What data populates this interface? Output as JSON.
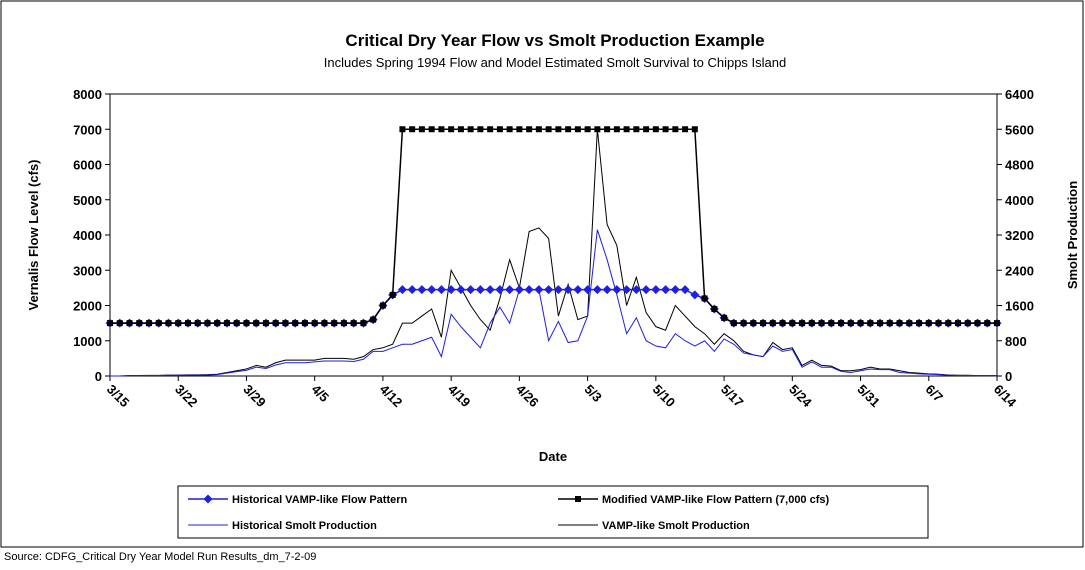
{
  "chart_data": {
    "type": "line",
    "title": "Critical Dry Year Flow vs Smolt Production Example",
    "subtitle": "Includes Spring 1994 Flow and Model Estimated Smolt Survival to Chipps Island",
    "x_label": "Date",
    "y_label": "Vernalis Flow Level (cfs)",
    "y2_label": "Smolt Production",
    "source": "Source: CDFG_Critical Dry Year Model Run Results_dm_7-2-09",
    "legend": "bottom",
    "categories": [
      "3/15",
      null,
      null,
      null,
      null,
      null,
      null,
      "3/22",
      null,
      null,
      null,
      null,
      null,
      null,
      "3/29",
      null,
      null,
      null,
      null,
      null,
      null,
      "4/5",
      null,
      null,
      null,
      null,
      null,
      null,
      "4/12",
      null,
      null,
      null,
      null,
      null,
      null,
      "4/19",
      null,
      null,
      null,
      null,
      null,
      null,
      "4/26",
      null,
      null,
      null,
      null,
      null,
      null,
      "5/3",
      null,
      null,
      null,
      null,
      null,
      null,
      "5/10",
      null,
      null,
      null,
      null,
      null,
      null,
      "5/17",
      null,
      null,
      null,
      null,
      null,
      null,
      "5/24",
      null,
      null,
      null,
      null,
      null,
      null,
      "5/31",
      null,
      null,
      null,
      null,
      null,
      null,
      "6/7",
      null,
      null,
      null,
      null,
      null,
      null,
      "6/14"
    ],
    "ylim": [
      0,
      8000
    ],
    "yticks": [
      0,
      1000,
      2000,
      3000,
      4000,
      5000,
      6000,
      7000,
      8000
    ],
    "y2lim": [
      0,
      6400
    ],
    "y2ticks": [
      0,
      800,
      1600,
      2400,
      3200,
      4000,
      4800,
      5600,
      6400
    ],
    "series": [
      {
        "name": "Historical VAMP-like Flow Pattern",
        "color": "#1f1fe0",
        "marker": "diamond",
        "axis": "y",
        "values": [
          1500,
          1500,
          1500,
          1500,
          1500,
          1500,
          1500,
          1500,
          1500,
          1500,
          1500,
          1500,
          1500,
          1500,
          1500,
          1500,
          1500,
          1500,
          1500,
          1500,
          1500,
          1500,
          1500,
          1500,
          1500,
          1500,
          1500,
          1600,
          2000,
          2300,
          2450,
          2450,
          2450,
          2450,
          2450,
          2450,
          2450,
          2450,
          2450,
          2450,
          2450,
          2450,
          2450,
          2450,
          2450,
          2450,
          2450,
          2450,
          2450,
          2450,
          2450,
          2450,
          2450,
          2450,
          2450,
          2450,
          2450,
          2450,
          2450,
          2450,
          2300,
          2200,
          1900,
          1650,
          1500,
          1500,
          1500,
          1500,
          1500,
          1500,
          1500,
          1500,
          1500,
          1500,
          1500,
          1500,
          1500,
          1500,
          1500,
          1500,
          1500,
          1500,
          1500,
          1500,
          1500,
          1500,
          1500,
          1500,
          1500,
          1500,
          1500,
          1500
        ]
      },
      {
        "name": "Modified VAMP-like Flow Pattern (7,000 cfs)",
        "color": "#000000",
        "marker": "square",
        "axis": "y",
        "values": [
          1500,
          1500,
          1500,
          1500,
          1500,
          1500,
          1500,
          1500,
          1500,
          1500,
          1500,
          1500,
          1500,
          1500,
          1500,
          1500,
          1500,
          1500,
          1500,
          1500,
          1500,
          1500,
          1500,
          1500,
          1500,
          1500,
          1500,
          1600,
          2000,
          2300,
          7000,
          7000,
          7000,
          7000,
          7000,
          7000,
          7000,
          7000,
          7000,
          7000,
          7000,
          7000,
          7000,
          7000,
          7000,
          7000,
          7000,
          7000,
          7000,
          7000,
          7000,
          7000,
          7000,
          7000,
          7000,
          7000,
          7000,
          7000,
          7000,
          7000,
          7000,
          2200,
          1900,
          1650,
          1500,
          1500,
          1500,
          1500,
          1500,
          1500,
          1500,
          1500,
          1500,
          1500,
          1500,
          1500,
          1500,
          1500,
          1500,
          1500,
          1500,
          1500,
          1500,
          1500,
          1500,
          1500,
          1500,
          1500,
          1500,
          1500,
          1500,
          1500
        ]
      },
      {
        "name": "Historical Smolt Production",
        "color": "#1f1fe0",
        "axis": "y2",
        "values": [
          0,
          0,
          8,
          8,
          12,
          12,
          16,
          16,
          20,
          20,
          24,
          32,
          64,
          100,
          130,
          200,
          170,
          250,
          300,
          300,
          300,
          320,
          340,
          340,
          340,
          330,
          380,
          560,
          560,
          640,
          720,
          720,
          800,
          880,
          440,
          1400,
          1120,
          880,
          640,
          1200,
          1560,
          1200,
          1960,
          1960,
          1960,
          800,
          1240,
          760,
          800,
          1360,
          3320,
          2640,
          1840,
          960,
          1320,
          800,
          680,
          640,
          960,
          800,
          680,
          800,
          560,
          840,
          720,
          520,
          480,
          440,
          680,
          560,
          600,
          200,
          320,
          200,
          200,
          104,
          80,
          120,
          160,
          144,
          144,
          80,
          64,
          48,
          40,
          32,
          20,
          12,
          12,
          8,
          8,
          4
        ]
      },
      {
        "name": "VAMP-like Smolt Production",
        "color": "#000000",
        "axis": "y2",
        "values": [
          0,
          0,
          10,
          10,
          15,
          15,
          20,
          20,
          25,
          25,
          30,
          40,
          80,
          120,
          160,
          240,
          200,
          300,
          360,
          360,
          360,
          360,
          400,
          400,
          400,
          380,
          440,
          600,
          640,
          720,
          1200,
          1200,
          1360,
          1520,
          880,
          2400,
          2000,
          1600,
          1280,
          1040,
          1760,
          2640,
          2000,
          3280,
          3360,
          3120,
          1360,
          2080,
          1280,
          1360,
          5600,
          3440,
          2960,
          1600,
          2240,
          1440,
          1120,
          1040,
          1600,
          1360,
          1120,
          960,
          720,
          960,
          800,
          560,
          480,
          440,
          760,
          600,
          640,
          240,
          360,
          240,
          224,
          120,
          120,
          144,
          200,
          160,
          160,
          120,
          80,
          64,
          48,
          40,
          24,
          16,
          16,
          8,
          8,
          8
        ]
      }
    ]
  }
}
